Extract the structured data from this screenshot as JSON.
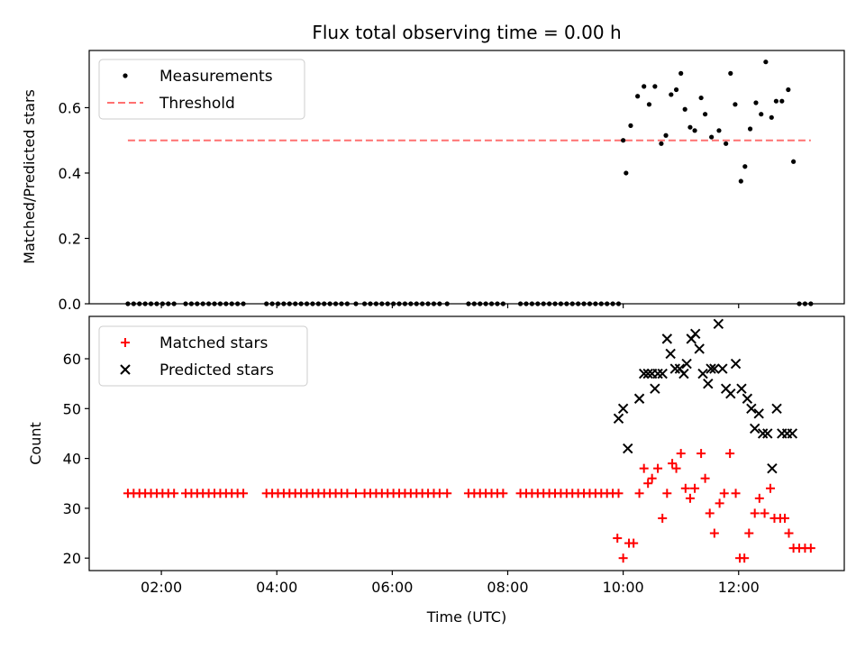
{
  "chart_data": [
    {
      "type": "scatter",
      "title": "Flux total observing time = 0.00 h",
      "xlabel": "",
      "ylabel": "Matched/Predicted stars",
      "xlim": [
        0.75,
        13.83
      ],
      "ylim": [
        0.0,
        0.775
      ],
      "yticks": [
        0.0,
        0.2,
        0.4,
        0.6
      ],
      "ytick_labels": [
        "0.0",
        "0.2",
        "0.4",
        "0.6"
      ],
      "legend": [
        "Measurements",
        "Threshold"
      ],
      "legend_placement": "top-left",
      "threshold": {
        "name": "Threshold",
        "value": 0.5,
        "x_range": [
          1.42,
          13.25
        ],
        "color": "#ff7070"
      },
      "series": [
        {
          "name": "Measurements",
          "color": "#000000",
          "x": [
            1.42,
            1.52,
            1.62,
            1.72,
            1.82,
            1.92,
            2.02,
            2.12,
            2.22,
            2.42,
            2.52,
            2.62,
            2.72,
            2.82,
            2.92,
            3.02,
            3.12,
            3.22,
            3.32,
            3.42,
            3.82,
            3.92,
            4.02,
            4.12,
            4.22,
            4.32,
            4.42,
            4.52,
            4.62,
            4.72,
            4.82,
            4.92,
            5.02,
            5.12,
            5.22,
            5.37,
            5.52,
            5.62,
            5.72,
            5.82,
            5.92,
            6.02,
            6.12,
            6.22,
            6.32,
            6.42,
            6.52,
            6.62,
            6.72,
            6.82,
            6.95,
            7.32,
            7.42,
            7.52,
            7.62,
            7.72,
            7.82,
            7.92,
            8.22,
            8.32,
            8.42,
            8.52,
            8.62,
            8.72,
            8.82,
            8.92,
            9.02,
            9.12,
            9.22,
            9.32,
            9.42,
            9.52,
            9.62,
            9.72,
            9.82,
            9.92,
            10.0,
            10.05,
            10.13,
            10.25,
            10.36,
            10.45,
            10.55,
            10.66,
            10.74,
            10.83,
            10.92,
            11.0,
            11.07,
            11.16,
            11.24,
            11.35,
            11.42,
            11.53,
            11.66,
            11.78,
            11.86,
            11.94,
            12.04,
            12.11,
            12.2,
            12.3,
            12.39,
            12.47,
            12.57,
            12.65,
            12.75,
            12.86,
            12.95,
            13.05,
            13.15,
            13.25
          ],
          "y": [
            0,
            0,
            0,
            0,
            0,
            0,
            0,
            0,
            0,
            0,
            0,
            0,
            0,
            0,
            0,
            0,
            0,
            0,
            0,
            0,
            0,
            0,
            0,
            0,
            0,
            0,
            0,
            0,
            0,
            0,
            0,
            0,
            0,
            0,
            0,
            0,
            0,
            0,
            0,
            0,
            0,
            0,
            0,
            0,
            0,
            0,
            0,
            0,
            0,
            0,
            0,
            0,
            0,
            0,
            0,
            0,
            0,
            0,
            0,
            0,
            0,
            0,
            0,
            0,
            0,
            0,
            0,
            0,
            0,
            0,
            0,
            0,
            0,
            0,
            0,
            0,
            0.5,
            0.4,
            0.545,
            0.635,
            0.665,
            0.61,
            0.665,
            0.49,
            0.515,
            0.64,
            0.655,
            0.705,
            0.595,
            0.54,
            0.53,
            0.63,
            0.58,
            0.51,
            0.53,
            0.49,
            0.705,
            0.61,
            0.375,
            0.42,
            0.535,
            0.615,
            0.58,
            0.74,
            0.57,
            0.62,
            0.62,
            0.655,
            0.435,
            0,
            0,
            0
          ]
        }
      ]
    },
    {
      "type": "scatter",
      "title": "",
      "xlabel": "Time (UTC)",
      "ylabel": "Count",
      "xlim": [
        0.75,
        13.83
      ],
      "ylim": [
        17.5,
        68.5
      ],
      "yticks": [
        20,
        30,
        40,
        50,
        60
      ],
      "ytick_labels": [
        "20",
        "30",
        "40",
        "50",
        "60"
      ],
      "xticks": [
        2,
        4,
        6,
        8,
        10,
        12
      ],
      "xtick_labels": [
        "02:00",
        "04:00",
        "06:00",
        "08:00",
        "10:00",
        "12:00"
      ],
      "legend": [
        "Matched stars",
        "Predicted stars"
      ],
      "legend_placement": "top-left",
      "series": [
        {
          "name": "Matched stars",
          "color": "#ff0000",
          "x": [
            1.42,
            1.52,
            1.62,
            1.72,
            1.82,
            1.92,
            2.02,
            2.12,
            2.22,
            2.42,
            2.52,
            2.62,
            2.72,
            2.82,
            2.92,
            3.02,
            3.12,
            3.22,
            3.32,
            3.42,
            3.82,
            3.92,
            4.02,
            4.12,
            4.22,
            4.32,
            4.42,
            4.52,
            4.62,
            4.72,
            4.82,
            4.92,
            5.02,
            5.12,
            5.22,
            5.37,
            5.52,
            5.62,
            5.72,
            5.82,
            5.92,
            6.02,
            6.12,
            6.22,
            6.32,
            6.42,
            6.52,
            6.62,
            6.72,
            6.82,
            6.95,
            7.32,
            7.42,
            7.52,
            7.62,
            7.72,
            7.82,
            7.92,
            8.22,
            8.32,
            8.42,
            8.52,
            8.62,
            8.72,
            8.82,
            8.92,
            9.02,
            9.12,
            9.22,
            9.32,
            9.42,
            9.52,
            9.62,
            9.72,
            9.82,
            9.92,
            9.9,
            10.0,
            10.1,
            10.18,
            10.28,
            10.36,
            10.43,
            10.5,
            10.6,
            10.68,
            10.76,
            10.85,
            10.92,
            11.0,
            11.08,
            11.16,
            11.24,
            11.35,
            11.42,
            11.5,
            11.58,
            11.67,
            11.75,
            11.85,
            11.95,
            12.02,
            12.1,
            12.18,
            12.28,
            12.36,
            12.45,
            12.55,
            12.62,
            12.72,
            12.8,
            12.87,
            12.95,
            13.05,
            13.15,
            13.25
          ],
          "y": [
            33,
            33,
            33,
            33,
            33,
            33,
            33,
            33,
            33,
            33,
            33,
            33,
            33,
            33,
            33,
            33,
            33,
            33,
            33,
            33,
            33,
            33,
            33,
            33,
            33,
            33,
            33,
            33,
            33,
            33,
            33,
            33,
            33,
            33,
            33,
            33,
            33,
            33,
            33,
            33,
            33,
            33,
            33,
            33,
            33,
            33,
            33,
            33,
            33,
            33,
            33,
            33,
            33,
            33,
            33,
            33,
            33,
            33,
            33,
            33,
            33,
            33,
            33,
            33,
            33,
            33,
            33,
            33,
            33,
            33,
            33,
            33,
            33,
            33,
            33,
            33,
            24,
            20,
            23,
            23,
            33,
            38,
            35,
            36,
            38,
            28,
            33,
            39,
            38,
            41,
            34,
            32,
            34,
            41,
            36,
            29,
            25,
            31,
            33,
            41,
            33,
            20,
            20,
            25,
            29,
            32,
            29,
            34,
            28,
            28,
            28,
            25,
            22,
            22,
            22,
            22
          ],
          "marker": "plus"
        },
        {
          "name": "Predicted stars",
          "color": "#000000",
          "x": [
            9.92,
            10.0,
            10.08,
            10.28,
            10.36,
            10.43,
            10.5,
            10.55,
            10.6,
            10.68,
            10.76,
            10.82,
            10.9,
            10.98,
            11.05,
            11.1,
            11.18,
            11.25,
            11.32,
            11.38,
            11.47,
            11.52,
            11.58,
            11.65,
            11.72,
            11.78,
            11.86,
            11.95,
            12.05,
            12.15,
            12.22,
            12.28,
            12.35,
            12.42,
            12.5,
            12.58,
            12.66,
            12.75,
            12.84,
            12.93
          ],
          "y": [
            48,
            50,
            42,
            52,
            57,
            57,
            57,
            54,
            57,
            57,
            64,
            61,
            58,
            58,
            57,
            59,
            64,
            65,
            62,
            57,
            55,
            58,
            58,
            67,
            58,
            54,
            53,
            59,
            54,
            52,
            50,
            46,
            49,
            45,
            45,
            38,
            50,
            45,
            45,
            45
          ],
          "marker": "x"
        }
      ]
    }
  ]
}
